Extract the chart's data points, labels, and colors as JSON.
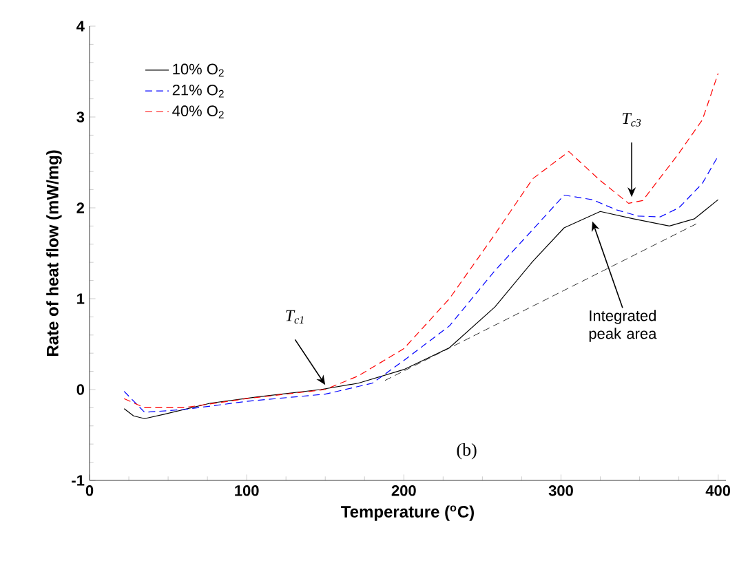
{
  "chart_data": {
    "type": "line",
    "xlabel": "Temperature ($^{o}$C)",
    "ylabel": "Rate of heat flow (mW/mg)",
    "xlim": [
      0,
      405
    ],
    "ylim": [
      -1,
      4
    ],
    "xticks": [
      0,
      100,
      200,
      300,
      400
    ],
    "yticks": [
      -1,
      0,
      1,
      2,
      3,
      4
    ],
    "legend": "top left",
    "grid": false,
    "series": [
      {
        "name": "10% O$_{2}$",
        "color": "#000000",
        "line_style": "solid",
        "x": [
          22,
          28,
          35,
          48,
          77,
          107,
          147,
          171,
          200,
          229,
          258,
          282,
          302,
          325,
          346,
          369,
          385,
          400
        ],
        "values": [
          -0.21,
          -0.29,
          -0.32,
          -0.27,
          -0.15,
          -0.08,
          0.0,
          0.07,
          0.22,
          0.46,
          0.91,
          1.41,
          1.78,
          1.96,
          1.88,
          1.8,
          1.88,
          2.09
        ]
      },
      {
        "name": "21% O$_{2}$",
        "color": "#0000ff",
        "line_style": "dashed",
        "x": [
          22,
          35,
          60,
          100,
          150,
          180,
          200,
          229,
          258,
          282,
          302,
          320,
          335,
          349,
          363,
          375,
          390,
          400
        ],
        "values": [
          -0.02,
          -0.25,
          -0.22,
          -0.13,
          -0.05,
          0.07,
          0.32,
          0.7,
          1.31,
          1.76,
          2.14,
          2.09,
          1.98,
          1.91,
          1.9,
          2.0,
          2.27,
          2.57
        ]
      },
      {
        "name": "40% O$_{2}$",
        "color": "#ff0000",
        "line_style": "dashed",
        "x": [
          22,
          35,
          60,
          100,
          150,
          171,
          200,
          229,
          258,
          282,
          305,
          325,
          343,
          352,
          375,
          390,
          400
        ],
        "values": [
          -0.1,
          -0.2,
          -0.2,
          -0.1,
          0.0,
          0.15,
          0.45,
          1.0,
          1.71,
          2.32,
          2.62,
          2.3,
          2.05,
          2.08,
          2.6,
          2.97,
          3.48
        ]
      },
      {
        "color": "#000000",
        "line_style": "dashed",
        "x": [
          188,
          388
        ],
        "values": [
          0.1,
          1.84
        ]
      }
    ],
    "annotations": [
      {
        "text": "T$_{c1}$",
        "x": 150,
        "y": 0.0
      },
      {
        "text": "T$_{c3}$",
        "x": 345,
        "y": 2.07
      },
      {
        "text": "Integrated peak area",
        "x": 320,
        "y": 1.9
      },
      "(b)"
    ]
  }
}
